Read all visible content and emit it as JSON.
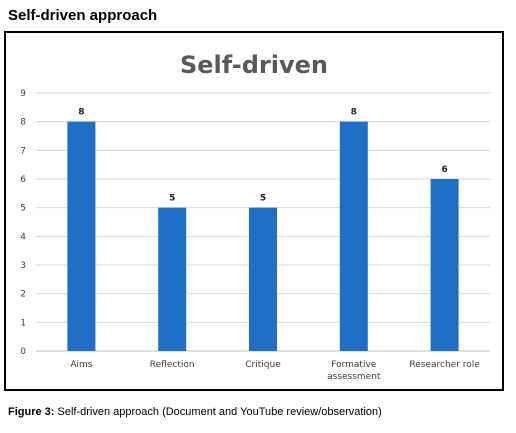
{
  "heading": "Self-driven approach",
  "caption": {
    "label": "Figure 3:",
    "text": " Self-driven approach (Document and YouTube review/observation)"
  },
  "chart_data": {
    "type": "bar",
    "title": "Self-driven",
    "categories": [
      [
        "Aims"
      ],
      [
        "Reflection"
      ],
      [
        "Critique"
      ],
      [
        "Formative",
        "assessment"
      ],
      [
        "Researcher role"
      ]
    ],
    "values": [
      8,
      5,
      5,
      8,
      6
    ],
    "ylim": [
      0,
      9
    ],
    "yticks": [
      0,
      1,
      2,
      3,
      4,
      5,
      6,
      7,
      8,
      9
    ],
    "grid": true,
    "bar_color": "#1e6fc8",
    "grid_color": "#d9d9d9",
    "title_color": "#595959"
  }
}
